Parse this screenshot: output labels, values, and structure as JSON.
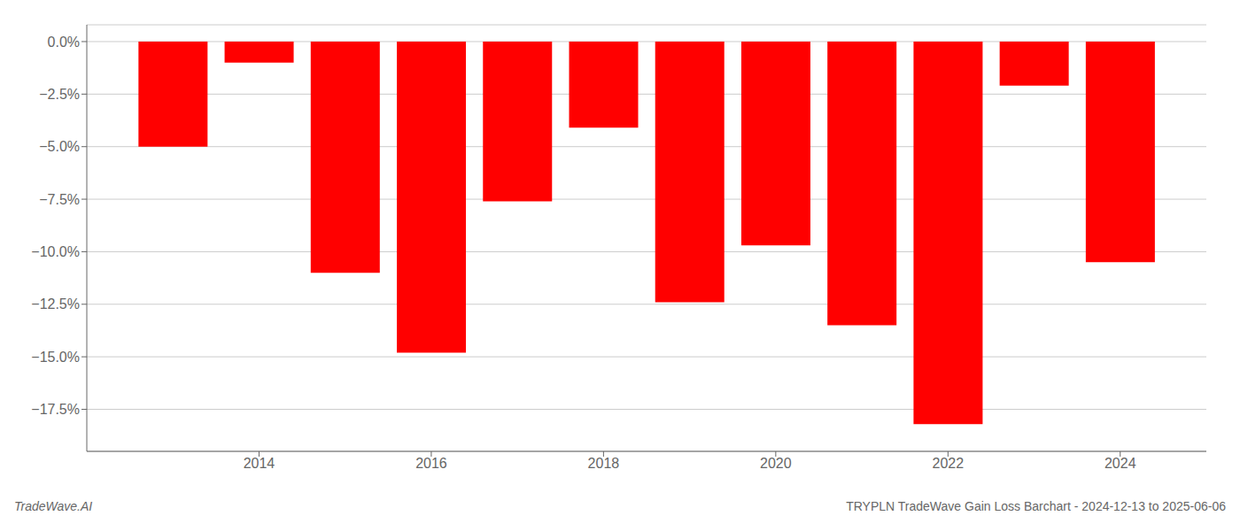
{
  "chart_data": {
    "type": "bar",
    "x": [
      2013,
      2014,
      2015,
      2016,
      2017,
      2018,
      2019,
      2020,
      2021,
      2022,
      2023,
      2024
    ],
    "values": [
      -5.0,
      -1.0,
      -11.0,
      -14.8,
      -7.6,
      -4.1,
      -12.4,
      -9.7,
      -13.5,
      -18.2,
      -2.1,
      -10.5
    ],
    "color": "#ff0000",
    "xlim": [
      2012,
      2025
    ],
    "xticks": [
      2014,
      2016,
      2018,
      2020,
      2022,
      2024
    ],
    "ylim": [
      -19.5,
      0.8
    ],
    "yticks": [
      {
        "value": 0.0,
        "label": "0.0%"
      },
      {
        "value": -2.5,
        "label": "−2.5%"
      },
      {
        "value": -5.0,
        "label": "−5.0%"
      },
      {
        "value": -7.5,
        "label": "−7.5%"
      },
      {
        "value": -10.0,
        "label": "−10.0%"
      },
      {
        "value": -12.5,
        "label": "−12.5%"
      },
      {
        "value": -15.0,
        "label": "−15.0%"
      },
      {
        "value": -17.5,
        "label": "−17.5%"
      }
    ],
    "grid": true,
    "annotations": [
      "TradeWave.AI",
      "TRYPLN TradeWave Gain Loss Barchart - 2024-12-13 to 2025-06-06"
    ]
  }
}
